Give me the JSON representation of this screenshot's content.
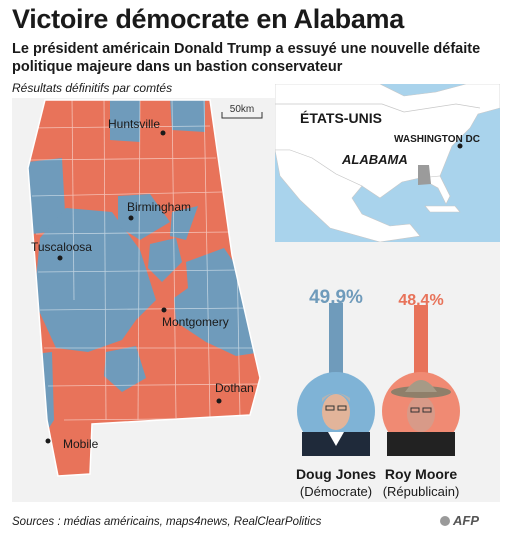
{
  "header": {
    "title": "Victoire démocrate en Alabama",
    "subtitle": "Le président américain Donald Trump a essuyé une nouvelle défaite politique majeure dans un bastion conservateur"
  },
  "map": {
    "results_label": "Résultats définitifs par comtés",
    "scale": "50km",
    "cities": [
      "Huntsville",
      "Birmingham",
      "Tuscaloosa",
      "Montgomery",
      "Dothan",
      "Mobile"
    ],
    "colors": {
      "democrat": "#6f9bbb",
      "republican": "#e8735a",
      "background": "#ffffff"
    }
  },
  "inset": {
    "country": "ÉTATS-UNIS",
    "capital": "WASHINGTON DC",
    "state": "ALABAMA",
    "colors": {
      "water": "#a9d3ec",
      "land": "#ffffff",
      "state": "#9b9b9b"
    }
  },
  "results": {
    "candidates": [
      {
        "name": "Doug Jones",
        "party": "(Démocrate)",
        "percent": "49,9%",
        "share": 0.499,
        "color": "#6f9bbb",
        "ring_color": "#7fb3d6"
      },
      {
        "name": "Roy Moore",
        "party": "(Républicain)",
        "percent": "48,4%",
        "share": 0.484,
        "color": "#e8735a",
        "ring_color": "#f08a73"
      }
    ]
  },
  "footer": {
    "sources": "Sources : médias américains, maps4news, RealClearPolitics",
    "logo": "AFP"
  }
}
